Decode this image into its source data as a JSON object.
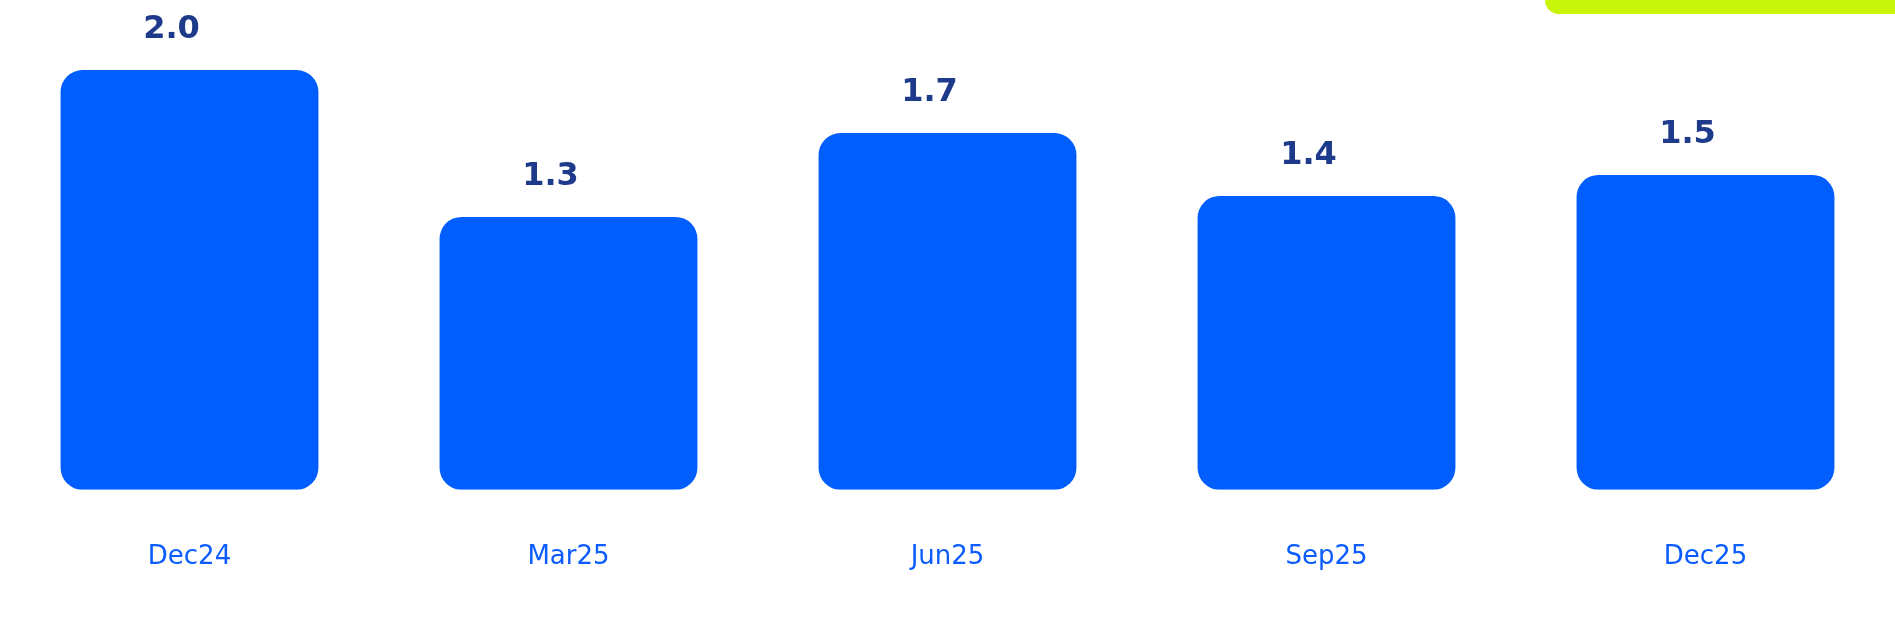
{
  "chart_data": {
    "type": "bar",
    "categories": [
      "Dec24",
      "Mar25",
      "Jun25",
      "Sep25",
      "Dec25"
    ],
    "values": [
      2.0,
      1.3,
      1.7,
      1.4,
      1.5
    ],
    "value_labels": [
      "2.0",
      "1.3",
      "1.7",
      "1.4",
      "1.5"
    ],
    "color": "#005eff",
    "grid": false,
    "legend": false
  }
}
